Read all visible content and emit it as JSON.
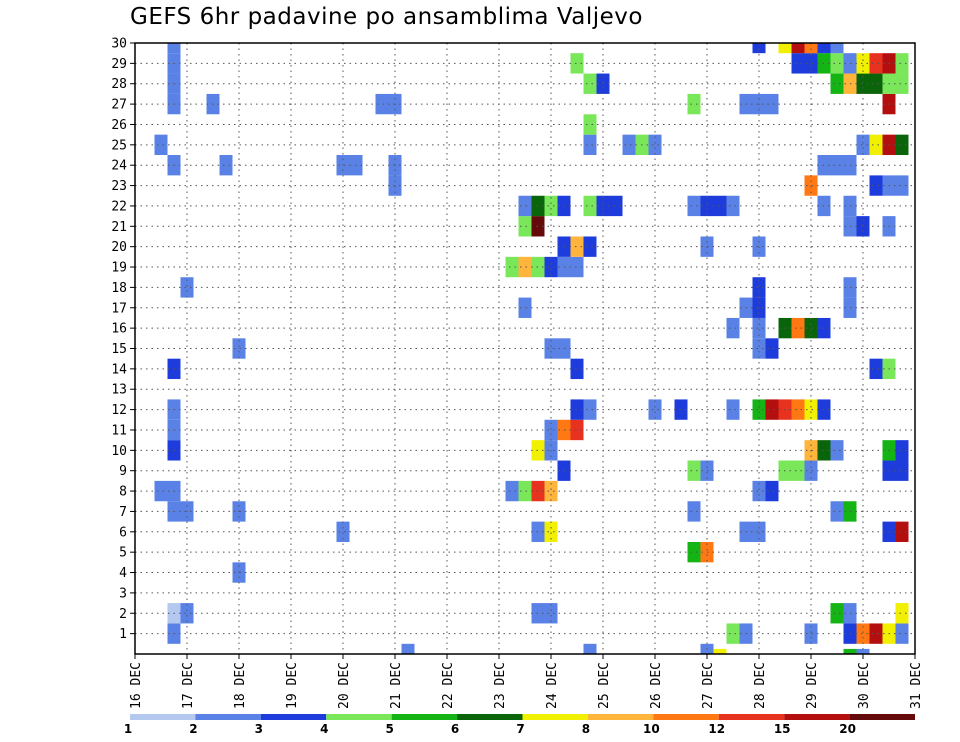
{
  "chart_data": {
    "type": "heatmap",
    "title": "GEFS 6hr padavine po ansamblima Valjevo",
    "xlabel": "",
    "ylabel": "",
    "x_ticks": [
      "16 DEC",
      "17 DEC",
      "18 DEC",
      "19 DEC",
      "20 DEC",
      "21 DEC",
      "22 DEC",
      "23 DEC",
      "24 DEC",
      "25 DEC",
      "26 DEC",
      "27 DEC",
      "28 DEC",
      "29 DEC",
      "30 DEC",
      "31 DEC"
    ],
    "y_ticks": [
      "1",
      "2",
      "3",
      "4",
      "5",
      "6",
      "7",
      "8",
      "9",
      "10",
      "11",
      "12",
      "13",
      "14",
      "15",
      "16",
      "17",
      "18",
      "19",
      "20",
      "21",
      "22",
      "23",
      "24",
      "25",
      "26",
      "27",
      "28",
      "29",
      "30"
    ],
    "x_unit": "day (December)",
    "xlim": [
      16,
      31
    ],
    "ylim": [
      0,
      30
    ],
    "grid": true,
    "legend": {
      "placement": "bottom",
      "boundaries": [
        "1",
        "2",
        "3",
        "4",
        "5",
        "6",
        "7",
        "8",
        "10",
        "12",
        "15",
        "20"
      ],
      "colors": [
        "#b4c8f0",
        "#5a82e6",
        "#1e3cdc",
        "#7ae65a",
        "#14b414",
        "#0a640a",
        "#f0f000",
        "#ffb43c",
        "#ff7814",
        "#e6321e",
        "#b40f0f",
        "#640a0a"
      ]
    },
    "cells": [
      {
        "x": 16.75,
        "y": 1,
        "v": 1
      },
      {
        "x": 16.75,
        "y": 2,
        "v": 0
      },
      {
        "x": 17.0,
        "y": 2,
        "v": 1
      },
      {
        "x": 16.75,
        "y": 7,
        "v": 1
      },
      {
        "x": 17.0,
        "y": 7,
        "v": 1
      },
      {
        "x": 16.5,
        "y": 8,
        "v": 1
      },
      {
        "x": 16.75,
        "y": 8,
        "v": 1
      },
      {
        "x": 16.75,
        "y": 10,
        "v": 2
      },
      {
        "x": 16.75,
        "y": 11,
        "v": 1
      },
      {
        "x": 16.75,
        "y": 12,
        "v": 1
      },
      {
        "x": 16.75,
        "y": 14,
        "v": 2
      },
      {
        "x": 17.0,
        "y": 18,
        "v": 1
      },
      {
        "x": 16.75,
        "y": 24,
        "v": 1
      },
      {
        "x": 16.5,
        "y": 25,
        "v": 1
      },
      {
        "x": 16.75,
        "y": 27,
        "v": 1
      },
      {
        "x": 16.75,
        "y": 28,
        "v": 1
      },
      {
        "x": 16.75,
        "y": 29,
        "v": 1
      },
      {
        "x": 16.75,
        "y": 30,
        "v": 1
      },
      {
        "x": 17.5,
        "y": 27,
        "v": 1
      },
      {
        "x": 17.75,
        "y": 24,
        "v": 1
      },
      {
        "x": 18.0,
        "y": 4,
        "v": 1
      },
      {
        "x": 18.0,
        "y": 7,
        "v": 1
      },
      {
        "x": 18.0,
        "y": 15,
        "v": 1
      },
      {
        "x": 20.0,
        "y": 6,
        "v": 1
      },
      {
        "x": 20.0,
        "y": 24,
        "v": 1
      },
      {
        "x": 20.25,
        "y": 24,
        "v": 1
      },
      {
        "x": 20.75,
        "y": 27,
        "v": 1
      },
      {
        "x": 21.0,
        "y": 23,
        "v": 1
      },
      {
        "x": 21.0,
        "y": 24,
        "v": 1
      },
      {
        "x": 21.0,
        "y": 27,
        "v": 1
      },
      {
        "x": 21.25,
        "y": 0,
        "v": 1
      },
      {
        "x": 23.25,
        "y": 8,
        "v": 1
      },
      {
        "x": 23.25,
        "y": 19,
        "v": 3
      },
      {
        "x": 23.5,
        "y": 8,
        "v": 3
      },
      {
        "x": 23.5,
        "y": 17,
        "v": 1
      },
      {
        "x": 23.5,
        "y": 19,
        "v": 7
      },
      {
        "x": 23.5,
        "y": 21,
        "v": 3
      },
      {
        "x": 23.5,
        "y": 22,
        "v": 1
      },
      {
        "x": 23.75,
        "y": 2,
        "v": 1
      },
      {
        "x": 23.75,
        "y": 6,
        "v": 1
      },
      {
        "x": 23.75,
        "y": 8,
        "v": 9
      },
      {
        "x": 23.75,
        "y": 10,
        "v": 6
      },
      {
        "x": 23.75,
        "y": 19,
        "v": 3
      },
      {
        "x": 23.75,
        "y": 21,
        "v": 11
      },
      {
        "x": 23.75,
        "y": 22,
        "v": 5
      },
      {
        "x": 24.0,
        "y": 2,
        "v": 1
      },
      {
        "x": 24.0,
        "y": 6,
        "v": 6
      },
      {
        "x": 24.0,
        "y": 8,
        "v": 7
      },
      {
        "x": 24.0,
        "y": 10,
        "v": 1
      },
      {
        "x": 24.0,
        "y": 11,
        "v": 1
      },
      {
        "x": 24.0,
        "y": 15,
        "v": 1
      },
      {
        "x": 24.0,
        "y": 19,
        "v": 2
      },
      {
        "x": 24.0,
        "y": 22,
        "v": 3
      },
      {
        "x": 24.25,
        "y": 9,
        "v": 2
      },
      {
        "x": 24.25,
        "y": 11,
        "v": 8
      },
      {
        "x": 24.25,
        "y": 15,
        "v": 1
      },
      {
        "x": 24.25,
        "y": 19,
        "v": 1
      },
      {
        "x": 24.25,
        "y": 20,
        "v": 2
      },
      {
        "x": 24.25,
        "y": 22,
        "v": 2
      },
      {
        "x": 24.5,
        "y": 11,
        "v": 9
      },
      {
        "x": 24.5,
        "y": 12,
        "v": 2
      },
      {
        "x": 24.5,
        "y": 14,
        "v": 2
      },
      {
        "x": 24.5,
        "y": 19,
        "v": 1
      },
      {
        "x": 24.5,
        "y": 20,
        "v": 7
      },
      {
        "x": 24.5,
        "y": 29,
        "v": 3
      },
      {
        "x": 24.75,
        "y": 0,
        "v": 1
      },
      {
        "x": 24.75,
        "y": 12,
        "v": 1
      },
      {
        "x": 24.75,
        "y": 20,
        "v": 2
      },
      {
        "x": 24.75,
        "y": 22,
        "v": 3
      },
      {
        "x": 24.75,
        "y": 25,
        "v": 1
      },
      {
        "x": 24.75,
        "y": 26,
        "v": 3
      },
      {
        "x": 24.75,
        "y": 28,
        "v": 3
      },
      {
        "x": 25.0,
        "y": 22,
        "v": 2
      },
      {
        "x": 25.0,
        "y": 28,
        "v": 2
      },
      {
        "x": 25.25,
        "y": 22,
        "v": 2
      },
      {
        "x": 25.5,
        "y": 25,
        "v": 1
      },
      {
        "x": 25.75,
        "y": 25,
        "v": 3
      },
      {
        "x": 26.0,
        "y": 25,
        "v": 1
      },
      {
        "x": 26.0,
        "y": 12,
        "v": 1
      },
      {
        "x": 26.5,
        "y": 12,
        "v": 2
      },
      {
        "x": 26.75,
        "y": 5,
        "v": 4
      },
      {
        "x": 26.75,
        "y": 7,
        "v": 1
      },
      {
        "x": 26.75,
        "y": 9,
        "v": 3
      },
      {
        "x": 26.75,
        "y": 22,
        "v": 1
      },
      {
        "x": 26.75,
        "y": 27,
        "v": 3
      },
      {
        "x": 27.0,
        "y": 0,
        "v": 1
      },
      {
        "x": 27.0,
        "y": 5,
        "v": 8
      },
      {
        "x": 27.0,
        "y": 9,
        "v": 1
      },
      {
        "x": 27.0,
        "y": 20,
        "v": 1
      },
      {
        "x": 27.0,
        "y": 22,
        "v": 2
      },
      {
        "x": 27.25,
        "y": -0.25,
        "v": 6
      },
      {
        "x": 27.25,
        "y": 22,
        "v": 2
      },
      {
        "x": 27.5,
        "y": 1,
        "v": 3
      },
      {
        "x": 27.5,
        "y": 12,
        "v": 1
      },
      {
        "x": 27.5,
        "y": 16,
        "v": 1
      },
      {
        "x": 27.5,
        "y": 22,
        "v": 1
      },
      {
        "x": 27.75,
        "y": 1,
        "v": 1
      },
      {
        "x": 27.75,
        "y": 6,
        "v": 1
      },
      {
        "x": 27.75,
        "y": 17,
        "v": 1
      },
      {
        "x": 27.75,
        "y": 27,
        "v": 1
      },
      {
        "x": 28.0,
        "y": 6,
        "v": 1
      },
      {
        "x": 28.0,
        "y": 8,
        "v": 1
      },
      {
        "x": 28.0,
        "y": 12,
        "v": 4
      },
      {
        "x": 28.0,
        "y": 15,
        "v": 1
      },
      {
        "x": 28.0,
        "y": 16,
        "v": 1
      },
      {
        "x": 28.0,
        "y": 17,
        "v": 2
      },
      {
        "x": 28.0,
        "y": 18,
        "v": 2
      },
      {
        "x": 28.0,
        "y": 20,
        "v": 1
      },
      {
        "x": 28.0,
        "y": 27,
        "v": 1
      },
      {
        "x": 28.0,
        "y": 30,
        "v": 2
      },
      {
        "x": 28.25,
        "y": 8,
        "v": 2
      },
      {
        "x": 28.25,
        "y": 12,
        "v": 10
      },
      {
        "x": 28.25,
        "y": 15,
        "v": 2
      },
      {
        "x": 28.25,
        "y": 27,
        "v": 1
      },
      {
        "x": 28.5,
        "y": 9,
        "v": 3
      },
      {
        "x": 28.5,
        "y": 12,
        "v": 9
      },
      {
        "x": 28.5,
        "y": 16,
        "v": 5
      },
      {
        "x": 28.5,
        "y": 30,
        "v": 6
      },
      {
        "x": 28.75,
        "y": 9,
        "v": 3
      },
      {
        "x": 28.75,
        "y": 12,
        "v": 8
      },
      {
        "x": 28.75,
        "y": 16,
        "v": 8
      },
      {
        "x": 28.75,
        "y": 29,
        "v": 2
      },
      {
        "x": 28.75,
        "y": 30,
        "v": 10
      },
      {
        "x": 29.0,
        "y": 1,
        "v": 1
      },
      {
        "x": 29.0,
        "y": 9,
        "v": 1
      },
      {
        "x": 29.0,
        "y": 10,
        "v": 7
      },
      {
        "x": 29.0,
        "y": 12,
        "v": 6
      },
      {
        "x": 29.0,
        "y": 16,
        "v": 5
      },
      {
        "x": 29.0,
        "y": 23,
        "v": 8
      },
      {
        "x": 29.0,
        "y": 29,
        "v": 2
      },
      {
        "x": 29.0,
        "y": 30,
        "v": 8
      },
      {
        "x": 29.25,
        "y": 10,
        "v": 5
      },
      {
        "x": 29.25,
        "y": 12,
        "v": 2
      },
      {
        "x": 29.25,
        "y": 16,
        "v": 2
      },
      {
        "x": 29.25,
        "y": 22,
        "v": 1
      },
      {
        "x": 29.25,
        "y": 24,
        "v": 1
      },
      {
        "x": 29.25,
        "y": 29,
        "v": 4
      },
      {
        "x": 29.25,
        "y": 30,
        "v": 2
      },
      {
        "x": 29.5,
        "y": 2,
        "v": 4
      },
      {
        "x": 29.5,
        "y": 7,
        "v": 1
      },
      {
        "x": 29.5,
        "y": 10,
        "v": 1
      },
      {
        "x": 29.5,
        "y": 24,
        "v": 1
      },
      {
        "x": 29.5,
        "y": 28,
        "v": 4
      },
      {
        "x": 29.5,
        "y": 29,
        "v": 3
      },
      {
        "x": 29.5,
        "y": 30,
        "v": 1
      },
      {
        "x": 29.75,
        "y": -0.25,
        "v": 4
      },
      {
        "x": 29.75,
        "y": 1,
        "v": 2
      },
      {
        "x": 29.75,
        "y": 2,
        "v": 1
      },
      {
        "x": 29.75,
        "y": 7,
        "v": 4
      },
      {
        "x": 29.75,
        "y": 17,
        "v": 1
      },
      {
        "x": 29.75,
        "y": 18,
        "v": 1
      },
      {
        "x": 29.75,
        "y": 21,
        "v": 1
      },
      {
        "x": 29.75,
        "y": 22,
        "v": 1
      },
      {
        "x": 29.75,
        "y": 24,
        "v": 1
      },
      {
        "x": 29.75,
        "y": 28,
        "v": 7
      },
      {
        "x": 29.75,
        "y": 29,
        "v": 1
      },
      {
        "x": 30.0,
        "y": -0.25,
        "v": 1
      },
      {
        "x": 30.0,
        "y": 1,
        "v": 8
      },
      {
        "x": 30.0,
        "y": 21,
        "v": 2
      },
      {
        "x": 30.0,
        "y": 25,
        "v": 1
      },
      {
        "x": 30.0,
        "y": 28,
        "v": 5
      },
      {
        "x": 30.0,
        "y": 29,
        "v": 6
      },
      {
        "x": 30.25,
        "y": 1,
        "v": 10
      },
      {
        "x": 30.25,
        "y": 14,
        "v": 2
      },
      {
        "x": 30.25,
        "y": 23,
        "v": 2
      },
      {
        "x": 30.25,
        "y": 25,
        "v": 6
      },
      {
        "x": 30.25,
        "y": 28,
        "v": 5
      },
      {
        "x": 30.25,
        "y": 29,
        "v": 9
      },
      {
        "x": 30.5,
        "y": 1,
        "v": 6
      },
      {
        "x": 30.5,
        "y": 6,
        "v": 2
      },
      {
        "x": 30.5,
        "y": 9,
        "v": 2
      },
      {
        "x": 30.5,
        "y": 10,
        "v": 4
      },
      {
        "x": 30.5,
        "y": 14,
        "v": 3
      },
      {
        "x": 30.5,
        "y": 21,
        "v": 1
      },
      {
        "x": 30.5,
        "y": 23,
        "v": 1
      },
      {
        "x": 30.5,
        "y": 25,
        "v": 10
      },
      {
        "x": 30.5,
        "y": 27,
        "v": 10
      },
      {
        "x": 30.5,
        "y": 28,
        "v": 3
      },
      {
        "x": 30.5,
        "y": 29,
        "v": 10
      },
      {
        "x": 30.75,
        "y": 1,
        "v": 1
      },
      {
        "x": 30.75,
        "y": 2,
        "v": 6
      },
      {
        "x": 30.75,
        "y": 6,
        "v": 10
      },
      {
        "x": 30.75,
        "y": 9,
        "v": 2
      },
      {
        "x": 30.75,
        "y": 10,
        "v": 2
      },
      {
        "x": 30.75,
        "y": 23,
        "v": 1
      },
      {
        "x": 30.75,
        "y": 25,
        "v": 5
      },
      {
        "x": 30.75,
        "y": 28,
        "v": 3
      },
      {
        "x": 30.75,
        "y": 29,
        "v": 3
      }
    ]
  }
}
